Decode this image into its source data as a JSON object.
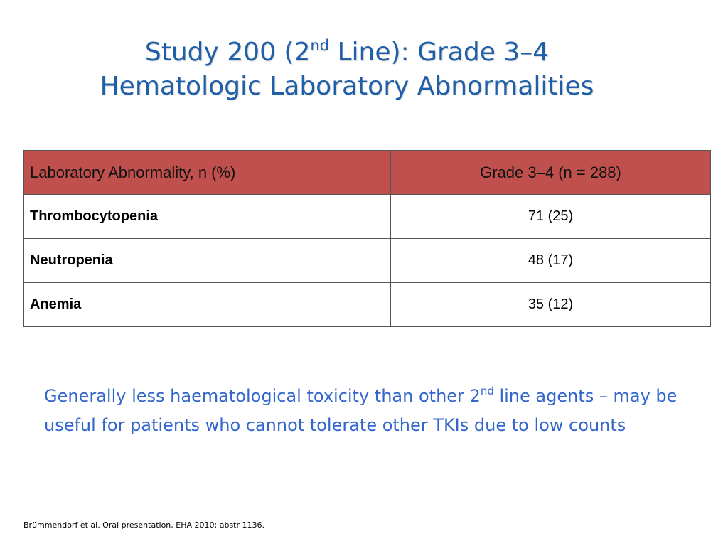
{
  "slide": {
    "title_line1_pre": "Study 200 (2",
    "title_line1_sup": "nd",
    "title_line1_post": " Line): Grade 3–4",
    "title_line2": "Hematologic Laboratory Abnormalities",
    "title_color": "#1f5fa8"
  },
  "table": {
    "header_color": "#c0504d",
    "headers": [
      "Laboratory Abnormality, n (%)",
      "Grade 3–4 (n = 288)"
    ],
    "rows": [
      {
        "name": "Thrombocytopenia",
        "value": "71 (25)"
      },
      {
        "name": "Neutropenia",
        "value": "48 (17)"
      },
      {
        "name": "Anemia",
        "value": "35 (12)"
      }
    ]
  },
  "note": {
    "part1": "Generally less haematological toxicity than other 2",
    "sup": "nd",
    "part2": " line agents – may be useful for patients who cannot tolerate other TKIs due to low counts",
    "color": "#3366cc"
  },
  "footer": {
    "citation": "Brümmendorf et al. Oral presentation, EHA 2010; abstr 1136."
  }
}
